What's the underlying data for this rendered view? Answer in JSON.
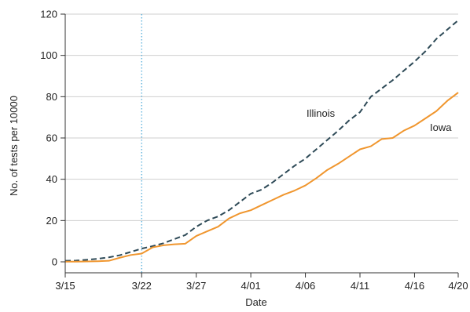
{
  "chart_data": {
    "type": "line",
    "title": "",
    "xlabel": "Date",
    "ylabel": "No. of tests per 10000",
    "ylim": [
      0,
      120
    ],
    "yticks": [
      0,
      20,
      40,
      60,
      80,
      100,
      120
    ],
    "xlim": [
      "3/15",
      "4/20"
    ],
    "xtick_labels": [
      "3/15",
      "3/22",
      "3/27",
      "4/01",
      "4/06",
      "4/11",
      "4/16",
      "4/20"
    ],
    "x": [
      "3/15",
      "3/16",
      "3/17",
      "3/18",
      "3/19",
      "3/20",
      "3/21",
      "3/22",
      "3/23",
      "3/24",
      "3/25",
      "3/26",
      "3/27",
      "3/28",
      "3/29",
      "3/30",
      "3/31",
      "4/01",
      "4/02",
      "4/03",
      "4/04",
      "4/05",
      "4/06",
      "4/07",
      "4/08",
      "4/09",
      "4/10",
      "4/11",
      "4/12",
      "4/13",
      "4/14",
      "4/15",
      "4/16",
      "4/17",
      "4/18",
      "4/19",
      "4/20"
    ],
    "grid": "horizontal",
    "reference_line": {
      "x": "3/22",
      "style": "dotted",
      "color": "#4aa8d8"
    },
    "series": [
      {
        "name": "Illinois",
        "color": "#2e4a57",
        "style": "dashed",
        "values": [
          0.5,
          0.6,
          1.0,
          1.5,
          2.2,
          3.2,
          4.8,
          6.4,
          7.6,
          9.0,
          11.0,
          13.0,
          17.0,
          20.0,
          22.0,
          25.0,
          29.0,
          33.0,
          35.0,
          38.5,
          42.5,
          46.5,
          50.0,
          54.5,
          59.0,
          63.5,
          68.5,
          72.5,
          80.0,
          84.0,
          88.0,
          92.5,
          97.0,
          102.0,
          108.0,
          112.5,
          117.0
        ]
      },
      {
        "name": "Iowa",
        "color": "#f0962e",
        "style": "solid",
        "values": [
          0.1,
          0.1,
          0.2,
          0.3,
          0.5,
          2.0,
          3.3,
          4.0,
          7.0,
          8.0,
          8.5,
          8.8,
          12.5,
          14.8,
          17.0,
          21.0,
          23.5,
          25.0,
          27.5,
          30.0,
          32.5,
          34.5,
          37.0,
          40.5,
          44.5,
          47.5,
          51.0,
          54.5,
          56.0,
          59.5,
          60.0,
          63.5,
          66.0,
          69.5,
          73.0,
          78.0,
          82.0
        ]
      }
    ]
  }
}
